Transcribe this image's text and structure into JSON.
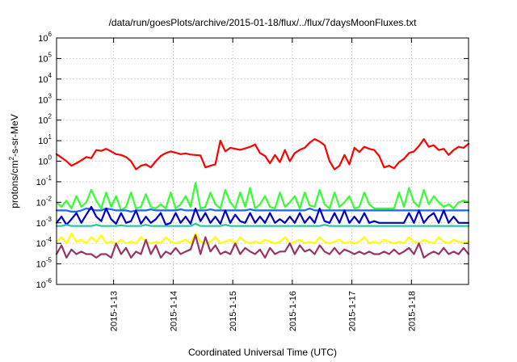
{
  "chart_data": {
    "type": "line",
    "title": "/data/run/goesPlots/archive/2015-01-18/flux/../flux/7daysMoonFluxes.txt",
    "xlabel": "Coordinated Universal Time (UTC)",
    "ylabel": "protons/cm2-s-sr-MeV",
    "ylabel_parts": {
      "base": "protons/cm",
      "sup": "2",
      "rest": "-s-sr-MeV"
    },
    "y_scale": "log",
    "ylim": [
      1e-06,
      1000000.0
    ],
    "xlim": [
      "2015-01-12T01:00",
      "2015-01-18T23:00"
    ],
    "grid": true,
    "y_ticks": [
      {
        "value": 1e-06,
        "base": "10",
        "exp": "-6"
      },
      {
        "value": 1e-05,
        "base": "10",
        "exp": "-5"
      },
      {
        "value": 0.0001,
        "base": "10",
        "exp": "-4"
      },
      {
        "value": 0.001,
        "base": "10",
        "exp": "-3"
      },
      {
        "value": 0.01,
        "base": "10",
        "exp": "-2"
      },
      {
        "value": 0.1,
        "base": "10",
        "exp": "-1"
      },
      {
        "value": 1,
        "base": "10",
        "exp": "0"
      },
      {
        "value": 10.0,
        "base": "10",
        "exp": "1"
      },
      {
        "value": 100.0,
        "base": "10",
        "exp": "2"
      },
      {
        "value": 1000.0,
        "base": "10",
        "exp": "3"
      },
      {
        "value": 10000.0,
        "base": "10",
        "exp": "4"
      },
      {
        "value": 100000.0,
        "base": "10",
        "exp": "5"
      },
      {
        "value": 1000000.0,
        "base": "10",
        "exp": "6"
      }
    ],
    "x_ticks": [
      {
        "value": "2015-01-13T00:00",
        "label": "2015-1-13"
      },
      {
        "value": "2015-01-14T00:00",
        "label": "2015-1-14"
      },
      {
        "value": "2015-01-15T00:00",
        "label": "2015-1-15"
      },
      {
        "value": "2015-01-16T00:00",
        "label": "2015-1-16"
      },
      {
        "value": "2015-01-17T00:00",
        "label": "2015-1-17"
      },
      {
        "value": "2015-01-18T00:00",
        "label": "2015-1-18"
      }
    ],
    "x": [
      "2015-01-12T01:00",
      "2015-01-12T03:00",
      "2015-01-12T05:00",
      "2015-01-12T07:00",
      "2015-01-12T09:00",
      "2015-01-12T11:00",
      "2015-01-12T13:00",
      "2015-01-12T15:00",
      "2015-01-12T17:00",
      "2015-01-12T19:00",
      "2015-01-12T21:00",
      "2015-01-12T23:00",
      "2015-01-13T01:00",
      "2015-01-13T03:00",
      "2015-01-13T05:00",
      "2015-01-13T07:00",
      "2015-01-13T09:00",
      "2015-01-13T11:00",
      "2015-01-13T13:00",
      "2015-01-13T15:00",
      "2015-01-13T17:00",
      "2015-01-13T19:00",
      "2015-01-13T21:00",
      "2015-01-13T23:00",
      "2015-01-14T01:00",
      "2015-01-14T03:00",
      "2015-01-14T05:00",
      "2015-01-14T07:00",
      "2015-01-14T09:00",
      "2015-01-14T11:00",
      "2015-01-14T13:00",
      "2015-01-14T15:00",
      "2015-01-14T17:00",
      "2015-01-14T19:00",
      "2015-01-14T21:00",
      "2015-01-14T23:00",
      "2015-01-15T01:00",
      "2015-01-15T03:00",
      "2015-01-15T05:00",
      "2015-01-15T07:00",
      "2015-01-15T09:00",
      "2015-01-15T11:00",
      "2015-01-15T13:00",
      "2015-01-15T15:00",
      "2015-01-15T17:00",
      "2015-01-15T19:00",
      "2015-01-15T21:00",
      "2015-01-15T23:00",
      "2015-01-16T01:00",
      "2015-01-16T03:00",
      "2015-01-16T05:00",
      "2015-01-16T07:00",
      "2015-01-16T09:00",
      "2015-01-16T11:00",
      "2015-01-16T13:00",
      "2015-01-16T15:00",
      "2015-01-16T17:00",
      "2015-01-16T19:00",
      "2015-01-16T21:00",
      "2015-01-16T23:00",
      "2015-01-17T01:00",
      "2015-01-17T03:00",
      "2015-01-17T05:00",
      "2015-01-17T07:00",
      "2015-01-17T09:00",
      "2015-01-17T11:00",
      "2015-01-17T13:00",
      "2015-01-17T15:00",
      "2015-01-17T17:00",
      "2015-01-17T19:00",
      "2015-01-17T21:00",
      "2015-01-17T23:00",
      "2015-01-18T01:00",
      "2015-01-18T03:00",
      "2015-01-18T05:00",
      "2015-01-18T07:00",
      "2015-01-18T09:00",
      "2015-01-18T11:00",
      "2015-01-18T13:00",
      "2015-01-18T15:00",
      "2015-01-18T17:00",
      "2015-01-18T19:00",
      "2015-01-18T21:00",
      "2015-01-18T23:00"
    ],
    "series": [
      {
        "color": "#ff0000",
        "values": [
          2.2,
          1.5,
          1.0,
          0.6,
          0.8,
          1.1,
          1.6,
          1.4,
          3.5,
          3.2,
          4.0,
          3.0,
          2.2,
          2.0,
          1.6,
          1.0,
          0.4,
          0.6,
          0.7,
          0.5,
          1.0,
          1.8,
          2.5,
          3.0,
          2.6,
          2.2,
          2.4,
          2.1,
          2.0,
          1.9,
          0.5,
          0.6,
          0.7,
          10,
          3.0,
          4.5,
          4.0,
          3.6,
          4.2,
          5.0,
          6.5,
          2.5,
          1.8,
          0.8,
          2.0,
          0.9,
          3.5,
          1.0,
          2.5,
          3.6,
          4.5,
          8.0,
          12,
          9.0,
          6.0,
          1.0,
          0.4,
          0.6,
          2.0,
          0.7,
          4.5,
          2.8,
          5.0,
          4.0,
          3.5,
          1.8,
          0.5,
          0.6,
          0.45,
          0.9,
          1.3,
          2.5,
          3.0,
          5.5,
          12,
          5.0,
          6.0,
          3.5,
          4.0,
          2.0,
          3.5,
          5.0,
          4.5,
          7.0
        ]
      },
      {
        "color": "#33ff33",
        "values": [
          0.01,
          0.006,
          0.012,
          0.005,
          0.02,
          0.006,
          0.01,
          0.04,
          0.012,
          0.005,
          0.03,
          0.006,
          0.02,
          0.004,
          0.006,
          0.03,
          0.005,
          0.006,
          0.025,
          0.006,
          0.005,
          0.008,
          0.005,
          0.03,
          0.005,
          0.008,
          0.02,
          0.006,
          0.09,
          0.005,
          0.006,
          0.03,
          0.008,
          0.005,
          0.04,
          0.01,
          0.005,
          0.03,
          0.006,
          0.05,
          0.005,
          0.008,
          0.02,
          0.006,
          0.005,
          0.03,
          0.006,
          0.01,
          0.02,
          0.005,
          0.03,
          0.007,
          0.006,
          0.04,
          0.008,
          0.005,
          0.03,
          0.006,
          0.01,
          0.02,
          0.005,
          0.006,
          0.03,
          0.008,
          0.005,
          0.005,
          0.005,
          0.005,
          0.005,
          0.03,
          0.006,
          0.05,
          0.01,
          0.006,
          0.04,
          0.008,
          0.02,
          0.01,
          0.006,
          0.008,
          0.005,
          0.01,
          0.012,
          0.01
        ]
      },
      {
        "color": "#1a66ff",
        "values": [
          0.004,
          0.004,
          0.004,
          0.0035,
          0.0035,
          0.004,
          0.005,
          0.0045,
          0.004,
          0.004,
          0.005,
          0.0045,
          0.004,
          0.004,
          0.004,
          0.0035,
          0.004,
          0.004,
          0.004,
          0.0045,
          0.004,
          0.004,
          0.004,
          0.004,
          0.004,
          0.0045,
          0.004,
          0.004,
          0.004,
          0.004,
          0.004,
          0.0045,
          0.004,
          0.004,
          0.004,
          0.004,
          0.004,
          0.004,
          0.004,
          0.0045,
          0.004,
          0.004,
          0.004,
          0.004,
          0.004,
          0.004,
          0.004,
          0.004,
          0.004,
          0.004,
          0.004,
          0.005,
          0.004,
          0.004,
          0.004,
          0.004,
          0.004,
          0.004,
          0.004,
          0.004,
          0.004,
          0.004,
          0.004,
          0.004,
          0.004,
          0.004,
          0.004,
          0.004,
          0.004,
          0.004,
          0.004,
          0.004,
          0.004,
          0.004,
          0.004,
          0.004,
          0.004,
          0.004,
          0.004,
          0.004,
          0.004,
          0.004,
          0.004,
          0.004
        ]
      },
      {
        "color": "#0000cc",
        "values": [
          0.001,
          0.002,
          0.0008,
          0.0015,
          0.003,
          0.001,
          0.0025,
          0.006,
          0.002,
          0.0012,
          0.005,
          0.0015,
          0.0009,
          0.003,
          0.001,
          0.0012,
          0.004,
          0.0009,
          0.002,
          0.001,
          0.0015,
          0.003,
          0.0008,
          0.001,
          0.003,
          0.001,
          0.002,
          0.0009,
          0.005,
          0.0012,
          0.003,
          0.001,
          0.002,
          0.0009,
          0.004,
          0.001,
          0.0025,
          0.0012,
          0.001,
          0.003,
          0.001,
          0.002,
          0.001,
          0.003,
          0.001,
          0.0015,
          0.001,
          0.002,
          0.001,
          0.003,
          0.001,
          0.002,
          0.001,
          0.005,
          0.0012,
          0.001,
          0.003,
          0.001,
          0.004,
          0.001,
          0.002,
          0.001,
          0.003,
          0.001,
          0.0012,
          0.001,
          0.001,
          0.001,
          0.001,
          0.001,
          0.001,
          0.003,
          0.001,
          0.004,
          0.001,
          0.002,
          0.003,
          0.001,
          0.004,
          0.001,
          0.002,
          0.001,
          0.001,
          0.001
        ]
      },
      {
        "color": "#20c8a0",
        "values": [
          0.0007,
          0.0007,
          0.0008,
          0.0007,
          0.0007,
          0.0007,
          0.0007,
          0.0007,
          0.0008,
          0.0007,
          0.0007,
          0.0007,
          0.0007,
          0.00075,
          0.0007,
          0.0007,
          0.0007,
          0.0007,
          0.0008,
          0.0007,
          0.0007,
          0.0007,
          0.0007,
          0.0007,
          0.0007,
          0.0007,
          0.0007,
          0.0007,
          0.0009,
          0.0007,
          0.0007,
          0.0007,
          0.0007,
          0.0007,
          0.0008,
          0.0007,
          0.0007,
          0.0007,
          0.0007,
          0.0007,
          0.0007,
          0.0007,
          0.0007,
          0.0007,
          0.0007,
          0.0007,
          0.0007,
          0.0007,
          0.0007,
          0.0007,
          0.0007,
          0.0007,
          0.0007,
          0.0007,
          0.0008,
          0.0007,
          0.0007,
          0.0007,
          0.0007,
          0.0007,
          0.0007,
          0.0007,
          0.0007,
          0.0007,
          0.0007,
          0.0007,
          0.0007,
          0.0007,
          0.0007,
          0.0007,
          0.0007,
          0.0007,
          0.0007,
          0.0007,
          0.0007,
          0.0007,
          0.0007,
          0.0007,
          0.0007,
          0.0007,
          0.0007,
          0.0007,
          0.0007,
          0.0007
        ]
      },
      {
        "color": "#ffff00",
        "values": [
          0.00012,
          0.0002,
          0.0001,
          0.0003,
          0.00012,
          0.00015,
          0.0001,
          0.0002,
          0.00012,
          0.00025,
          0.0001,
          0.00012,
          0.0001,
          0.00015,
          0.0001,
          0.00012,
          0.0001,
          0.0002,
          0.00012,
          0.0001,
          0.00012,
          0.0001,
          0.0002,
          0.00012,
          0.0001,
          0.00012,
          0.00015,
          0.0001,
          0.0003,
          0.00012,
          0.0001,
          0.00012,
          0.0002,
          0.0001,
          0.00012,
          0.00015,
          0.0001,
          0.0002,
          0.00012,
          0.0001,
          0.00012,
          0.0001,
          0.00015,
          0.00012,
          0.0001,
          0.00012,
          0.0002,
          0.0001,
          0.00012,
          0.00015,
          0.0001,
          0.00012,
          0.0001,
          0.0002,
          0.00012,
          0.0001,
          0.00012,
          0.00015,
          0.0001,
          0.00012,
          0.0001,
          0.00012,
          0.0002,
          0.0001,
          0.00012,
          0.0001,
          0.00015,
          0.00012,
          0.0001,
          0.00012,
          0.0001,
          0.0002,
          0.00012,
          0.0001,
          0.00015,
          0.00012,
          0.0001,
          0.0002,
          0.00012,
          0.0001,
          0.00015,
          0.00012,
          0.0001,
          0.00012
        ]
      },
      {
        "color": "#993366",
        "values": [
          3e-05,
          8e-05,
          2e-05,
          5e-05,
          3e-05,
          4e-05,
          3e-05,
          3e-05,
          2e-05,
          3e-05,
          3e-05,
          2e-05,
          0.0001,
          3e-05,
          6e-05,
          2e-05,
          4e-05,
          3e-05,
          0.00015,
          3e-05,
          8e-05,
          2e-05,
          4e-05,
          3e-05,
          6e-05,
          3e-05,
          4e-05,
          5e-05,
          0.00025,
          3e-05,
          0.0002,
          4e-05,
          8e-05,
          3e-05,
          4e-05,
          3e-05,
          0.0001,
          3e-05,
          6e-05,
          4e-05,
          3e-05,
          5e-05,
          2e-05,
          6e-05,
          3e-05,
          4e-05,
          4e-05,
          0.0001,
          3e-05,
          8e-05,
          4e-05,
          5e-05,
          3e-05,
          8e-05,
          4e-05,
          3e-05,
          6e-05,
          3e-05,
          5e-05,
          4e-05,
          3e-05,
          4e-05,
          3e-05,
          4e-05,
          3e-05,
          3e-05,
          4e-05,
          3e-05,
          5e-05,
          3e-05,
          4e-05,
          6e-05,
          3e-05,
          0.0001,
          2e-05,
          3e-05,
          4e-05,
          3e-05,
          6e-05,
          3e-05,
          4e-05,
          3e-05,
          6e-05,
          3e-05
        ]
      }
    ]
  }
}
